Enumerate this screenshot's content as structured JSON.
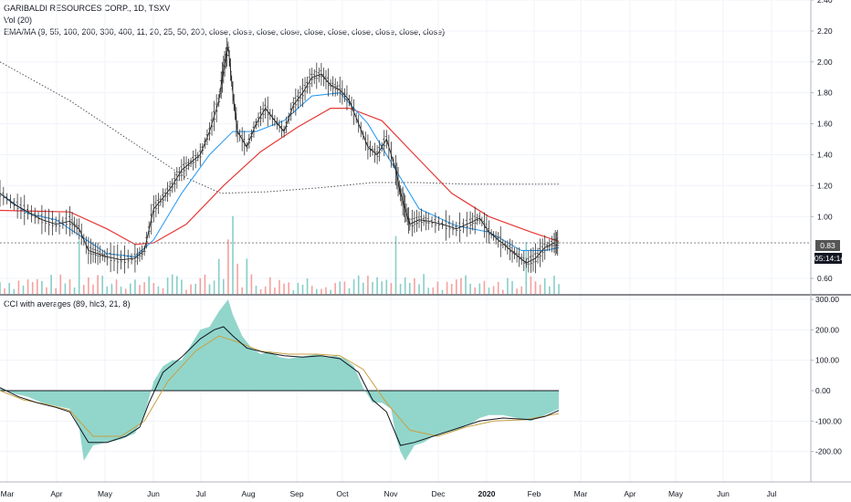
{
  "header": {
    "symbol": "GARIBALDI RESOURCES CORP., 1D, TSXV",
    "vol": "Vol (20)",
    "ema": "EMA/MA (9, 55, 100, 200, 300, 400, 11, 20, 25, 50, 200, close, close, close, close, close, close, close, close, close, close)"
  },
  "lower_title": "CCI with averages (89, hlc3, 21, 8)",
  "badges": {
    "last_price": "0.83",
    "countdown": "05:14:14"
  },
  "colors": {
    "up": "#26a69a",
    "down": "#ef5350",
    "ema_blue": "#2196f3",
    "ema_red": "#e53935",
    "fill": "#7fcfc2",
    "cci_orange": "#c8a040"
  },
  "chart_data": [
    {
      "type": "line",
      "title": "GARIBALDI RESOURCES CORP., 1D, TSXV",
      "x_ticks": [
        "Mar",
        "Apr",
        "May",
        "Jun",
        "Jul",
        "Aug",
        "Sep",
        "Oct",
        "Nov",
        "Dec",
        "2020",
        "Feb",
        "Mar",
        "Apr",
        "May",
        "Jun",
        "Jul"
      ],
      "y_ticks": [
        "2.40",
        "2.20",
        "2.00",
        "1.80",
        "1.60",
        "1.40",
        "1.20",
        "1.00",
        "0.83",
        "0.60"
      ],
      "ylim": [
        0.5,
        2.4
      ],
      "price": [
        [
          0,
          1.15
        ],
        [
          6,
          1.08
        ],
        [
          12,
          1.03
        ],
        [
          18,
          0.98
        ],
        [
          24,
          0.95
        ],
        [
          30,
          0.97
        ],
        [
          34,
          0.92
        ],
        [
          38,
          0.78
        ],
        [
          42,
          0.76
        ],
        [
          46,
          0.74
        ],
        [
          52,
          0.72
        ],
        [
          58,
          0.73
        ],
        [
          62,
          0.78
        ],
        [
          66,
          1.05
        ],
        [
          70,
          1.12
        ],
        [
          74,
          1.2
        ],
        [
          78,
          1.3
        ],
        [
          82,
          1.35
        ],
        [
          86,
          1.4
        ],
        [
          90,
          1.55
        ],
        [
          94,
          1.75
        ],
        [
          96,
          1.95
        ],
        [
          98,
          2.1
        ],
        [
          100,
          1.8
        ],
        [
          102,
          1.55
        ],
        [
          106,
          1.45
        ],
        [
          110,
          1.6
        ],
        [
          114,
          1.7
        ],
        [
          118,
          1.62
        ],
        [
          122,
          1.55
        ],
        [
          126,
          1.72
        ],
        [
          130,
          1.8
        ],
        [
          134,
          1.9
        ],
        [
          138,
          1.92
        ],
        [
          142,
          1.85
        ],
        [
          146,
          1.82
        ],
        [
          150,
          1.75
        ],
        [
          154,
          1.6
        ],
        [
          158,
          1.45
        ],
        [
          162,
          1.4
        ],
        [
          166,
          1.5
        ],
        [
          170,
          1.3
        ],
        [
          172,
          1.15
        ],
        [
          174,
          1.05
        ],
        [
          176,
          0.95
        ],
        [
          180,
          0.98
        ],
        [
          184,
          0.97
        ],
        [
          190,
          0.95
        ],
        [
          196,
          0.92
        ],
        [
          202,
          0.96
        ],
        [
          206,
          0.99
        ],
        [
          210,
          0.9
        ],
        [
          214,
          0.85
        ],
        [
          218,
          0.8
        ],
        [
          222,
          0.75
        ],
        [
          226,
          0.7
        ],
        [
          230,
          0.73
        ],
        [
          234,
          0.8
        ],
        [
          238,
          0.83
        ],
        [
          240,
          0.83
        ]
      ],
      "ema_blue": [
        [
          0,
          1.15
        ],
        [
          12,
          1.02
        ],
        [
          24,
          0.98
        ],
        [
          34,
          0.88
        ],
        [
          46,
          0.76
        ],
        [
          58,
          0.74
        ],
        [
          66,
          0.85
        ],
        [
          78,
          1.15
        ],
        [
          90,
          1.4
        ],
        [
          100,
          1.55
        ],
        [
          110,
          1.55
        ],
        [
          122,
          1.62
        ],
        [
          134,
          1.78
        ],
        [
          146,
          1.8
        ],
        [
          158,
          1.6
        ],
        [
          170,
          1.3
        ],
        [
          180,
          1.05
        ],
        [
          196,
          0.94
        ],
        [
          210,
          0.9
        ],
        [
          224,
          0.78
        ],
        [
          234,
          0.78
        ],
        [
          240,
          0.8
        ]
      ],
      "ema_red": [
        [
          0,
          1.04
        ],
        [
          30,
          1.03
        ],
        [
          46,
          0.92
        ],
        [
          58,
          0.82
        ],
        [
          66,
          0.83
        ],
        [
          80,
          0.95
        ],
        [
          96,
          1.2
        ],
        [
          112,
          1.42
        ],
        [
          128,
          1.58
        ],
        [
          142,
          1.7
        ],
        [
          150,
          1.7
        ],
        [
          164,
          1.62
        ],
        [
          178,
          1.4
        ],
        [
          194,
          1.15
        ],
        [
          210,
          1.0
        ],
        [
          228,
          0.9
        ],
        [
          240,
          0.84
        ]
      ],
      "ma_dotted": [
        [
          0,
          2.0
        ],
        [
          30,
          1.75
        ],
        [
          60,
          1.45
        ],
        [
          80,
          1.25
        ],
        [
          95,
          1.15
        ],
        [
          115,
          1.16
        ],
        [
          140,
          1.19
        ],
        [
          160,
          1.22
        ],
        [
          180,
          1.22
        ],
        [
          200,
          1.21
        ],
        [
          225,
          1.21
        ],
        [
          240,
          1.21
        ]
      ]
    },
    {
      "type": "area",
      "title": "CCI with averages (89, hlc3, 21, 8)",
      "y_ticks": [
        "300.00",
        "200.00",
        "100.00",
        "0.00",
        "-100.00",
        "-200.00"
      ],
      "ylim": [
        -300,
        300
      ],
      "cci": [
        [
          0,
          10
        ],
        [
          6,
          -10
        ],
        [
          12,
          -20
        ],
        [
          18,
          -40
        ],
        [
          24,
          -50
        ],
        [
          30,
          -60
        ],
        [
          34,
          -120
        ],
        [
          36,
          -230
        ],
        [
          40,
          -180
        ],
        [
          46,
          -170
        ],
        [
          52,
          -160
        ],
        [
          58,
          -140
        ],
        [
          62,
          -80
        ],
        [
          66,
          30
        ],
        [
          70,
          80
        ],
        [
          74,
          100
        ],
        [
          78,
          100
        ],
        [
          82,
          150
        ],
        [
          86,
          200
        ],
        [
          90,
          210
        ],
        [
          94,
          260
        ],
        [
          98,
          300
        ],
        [
          100,
          250
        ],
        [
          104,
          180
        ],
        [
          108,
          140
        ],
        [
          112,
          120
        ],
        [
          116,
          130
        ],
        [
          120,
          110
        ],
        [
          124,
          105
        ],
        [
          128,
          110
        ],
        [
          132,
          115
        ],
        [
          136,
          120
        ],
        [
          140,
          110
        ],
        [
          144,
          115
        ],
        [
          148,
          105
        ],
        [
          152,
          80
        ],
        [
          156,
          10
        ],
        [
          160,
          -40
        ],
        [
          164,
          -40
        ],
        [
          168,
          -60
        ],
        [
          170,
          -150
        ],
        [
          172,
          -200
        ],
        [
          174,
          -230
        ],
        [
          178,
          -180
        ],
        [
          182,
          -170
        ],
        [
          186,
          -150
        ],
        [
          190,
          -140
        ],
        [
          196,
          -130
        ],
        [
          202,
          -110
        ],
        [
          206,
          -90
        ],
        [
          210,
          -80
        ],
        [
          216,
          -80
        ],
        [
          222,
          -90
        ],
        [
          228,
          -100
        ],
        [
          234,
          -80
        ],
        [
          240,
          -60
        ]
      ],
      "cci_black": [
        [
          0,
          10
        ],
        [
          8,
          -20
        ],
        [
          16,
          -40
        ],
        [
          24,
          -55
        ],
        [
          30,
          -70
        ],
        [
          34,
          -120
        ],
        [
          38,
          -170
        ],
        [
          46,
          -170
        ],
        [
          54,
          -150
        ],
        [
          60,
          -120
        ],
        [
          64,
          -40
        ],
        [
          70,
          60
        ],
        [
          78,
          110
        ],
        [
          86,
          170
        ],
        [
          92,
          200
        ],
        [
          96,
          210
        ],
        [
          100,
          180
        ],
        [
          106,
          140
        ],
        [
          114,
          125
        ],
        [
          122,
          115
        ],
        [
          130,
          110
        ],
        [
          138,
          115
        ],
        [
          146,
          105
        ],
        [
          154,
          60
        ],
        [
          160,
          -30
        ],
        [
          166,
          -70
        ],
        [
          172,
          -180
        ],
        [
          178,
          -170
        ],
        [
          186,
          -150
        ],
        [
          196,
          -125
        ],
        [
          206,
          -100
        ],
        [
          216,
          -90
        ],
        [
          228,
          -95
        ],
        [
          234,
          -85
        ],
        [
          240,
          -65
        ]
      ],
      "cci_orange": [
        [
          0,
          0
        ],
        [
          10,
          -30
        ],
        [
          20,
          -45
        ],
        [
          30,
          -65
        ],
        [
          40,
          -150
        ],
        [
          52,
          -150
        ],
        [
          62,
          -100
        ],
        [
          72,
          30
        ],
        [
          84,
          130
        ],
        [
          94,
          180
        ],
        [
          102,
          160
        ],
        [
          112,
          130
        ],
        [
          124,
          120
        ],
        [
          136,
          120
        ],
        [
          146,
          115
        ],
        [
          156,
          70
        ],
        [
          166,
          -40
        ],
        [
          176,
          -130
        ],
        [
          188,
          -150
        ],
        [
          200,
          -120
        ],
        [
          212,
          -100
        ],
        [
          226,
          -95
        ],
        [
          240,
          -75
        ]
      ],
      "volume_bars": "decorative"
    }
  ]
}
